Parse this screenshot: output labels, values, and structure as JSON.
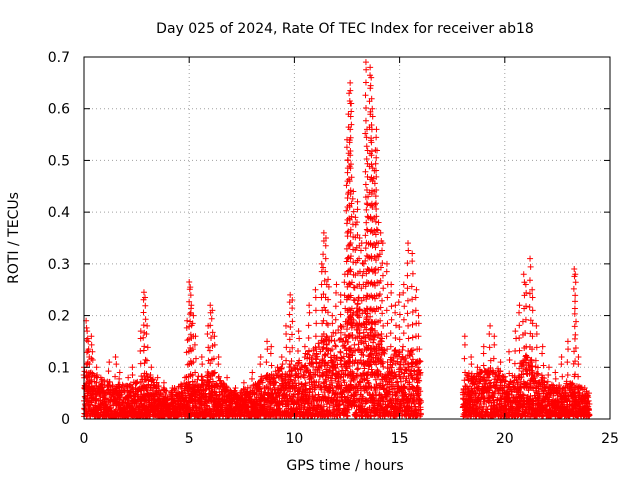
{
  "chart_data": {
    "type": "scatter",
    "title": "Day 025 of 2024, Rate Of TEC Index for receiver ab18",
    "xlabel": "GPS time / hours",
    "ylabel": "ROTI / TECUs",
    "xlim": [
      0,
      25
    ],
    "ylim": [
      0,
      0.7
    ],
    "xticks": [
      "0",
      "5",
      "10",
      "15",
      "20",
      "25"
    ],
    "yticks": [
      "0",
      "0.1",
      "0.2",
      "0.3",
      "0.4",
      "0.5",
      "0.6",
      "0.7"
    ],
    "grid": true,
    "marker": "plus",
    "color": "#ff0000",
    "series": [
      {
        "name": "ROTI",
        "points": [
          [
            0.0,
            0.1
          ],
          [
            0.1,
            0.19
          ],
          [
            0.15,
            0.17
          ],
          [
            0.2,
            0.15
          ],
          [
            0.25,
            0.12
          ],
          [
            0.35,
            0.16
          ],
          [
            0.4,
            0.13
          ],
          [
            0.6,
            0.1
          ],
          [
            0.8,
            0.08
          ],
          [
            1.2,
            0.11
          ],
          [
            1.5,
            0.12
          ],
          [
            1.7,
            0.09
          ],
          [
            2.1,
            0.08
          ],
          [
            2.3,
            0.1
          ],
          [
            2.5,
            0.07
          ],
          [
            2.7,
            0.17
          ],
          [
            2.85,
            0.245
          ],
          [
            2.9,
            0.235
          ],
          [
            3.0,
            0.18
          ],
          [
            3.2,
            0.1
          ],
          [
            3.5,
            0.08
          ],
          [
            3.8,
            0.07
          ],
          [
            4.2,
            0.06
          ],
          [
            4.5,
            0.05
          ],
          [
            4.8,
            0.08
          ],
          [
            4.9,
            0.19
          ],
          [
            5.0,
            0.265
          ],
          [
            5.05,
            0.255
          ],
          [
            5.1,
            0.22
          ],
          [
            5.2,
            0.2
          ],
          [
            5.3,
            0.16
          ],
          [
            5.6,
            0.12
          ],
          [
            5.9,
            0.18
          ],
          [
            6.0,
            0.22
          ],
          [
            6.1,
            0.21
          ],
          [
            6.2,
            0.16
          ],
          [
            6.4,
            0.12
          ],
          [
            6.8,
            0.08
          ],
          [
            7.2,
            0.06
          ],
          [
            7.6,
            0.07
          ],
          [
            8.0,
            0.09
          ],
          [
            8.4,
            0.12
          ],
          [
            8.7,
            0.15
          ],
          [
            8.9,
            0.14
          ],
          [
            9.2,
            0.1
          ],
          [
            9.4,
            0.12
          ],
          [
            9.6,
            0.18
          ],
          [
            9.8,
            0.24
          ],
          [
            9.9,
            0.23
          ],
          [
            10.2,
            0.17
          ],
          [
            10.5,
            0.14
          ],
          [
            10.7,
            0.22
          ],
          [
            11.0,
            0.25
          ],
          [
            11.3,
            0.3
          ],
          [
            11.4,
            0.36
          ],
          [
            11.5,
            0.35
          ],
          [
            11.6,
            0.27
          ],
          [
            11.8,
            0.2
          ],
          [
            12.0,
            0.26
          ],
          [
            12.2,
            0.24
          ],
          [
            12.4,
            0.28
          ],
          [
            12.5,
            0.54
          ],
          [
            12.55,
            0.5
          ],
          [
            12.6,
            0.63
          ],
          [
            12.65,
            0.65
          ],
          [
            12.7,
            0.61
          ],
          [
            12.8,
            0.44
          ],
          [
            12.9,
            0.39
          ],
          [
            13.0,
            0.42
          ],
          [
            13.1,
            0.35
          ],
          [
            13.2,
            0.34
          ],
          [
            13.3,
            0.3
          ],
          [
            13.4,
            0.69
          ],
          [
            13.45,
            0.56
          ],
          [
            13.5,
            0.43
          ],
          [
            13.6,
            0.68
          ],
          [
            13.65,
            0.66
          ],
          [
            13.7,
            0.6
          ],
          [
            13.8,
            0.48
          ],
          [
            13.85,
            0.52
          ],
          [
            13.9,
            0.56
          ],
          [
            14.0,
            0.38
          ],
          [
            14.1,
            0.36
          ],
          [
            14.2,
            0.34
          ],
          [
            14.4,
            0.3
          ],
          [
            14.6,
            0.26
          ],
          [
            14.8,
            0.22
          ],
          [
            15.0,
            0.24
          ],
          [
            15.2,
            0.26
          ],
          [
            15.4,
            0.34
          ],
          [
            15.6,
            0.32
          ],
          [
            15.8,
            0.25
          ],
          [
            15.9,
            0.2
          ],
          [
            18.1,
            0.16
          ],
          [
            18.4,
            0.12
          ],
          [
            18.7,
            0.1
          ],
          [
            19.0,
            0.14
          ],
          [
            19.3,
            0.18
          ],
          [
            19.5,
            0.16
          ],
          [
            19.8,
            0.11
          ],
          [
            20.2,
            0.13
          ],
          [
            20.5,
            0.17
          ],
          [
            20.7,
            0.22
          ],
          [
            20.9,
            0.28
          ],
          [
            21.0,
            0.26
          ],
          [
            21.2,
            0.31
          ],
          [
            21.3,
            0.25
          ],
          [
            21.5,
            0.18
          ],
          [
            21.8,
            0.14
          ],
          [
            22.1,
            0.1
          ],
          [
            22.4,
            0.09
          ],
          [
            22.7,
            0.12
          ],
          [
            23.0,
            0.15
          ],
          [
            23.3,
            0.29
          ],
          [
            23.35,
            0.28
          ],
          [
            23.5,
            0.12
          ],
          [
            23.8,
            0.06
          ],
          [
            24.0,
            0.05
          ]
        ],
        "envelope": {
          "hours": [
            0,
            1,
            2,
            3,
            4,
            5,
            6,
            7,
            8,
            9,
            10,
            11,
            12,
            12.5,
            13,
            13.5,
            14,
            14.5,
            15,
            15.5,
            16
          ],
          "max": [
            0.09,
            0.07,
            0.06,
            0.08,
            0.05,
            0.07,
            0.09,
            0.05,
            0.06,
            0.09,
            0.1,
            0.14,
            0.17,
            0.19,
            0.22,
            0.2,
            0.16,
            0.13,
            0.13,
            0.13,
            0.11
          ]
        },
        "envelope2": {
          "hours": [
            18,
            18.5,
            19,
            19.5,
            20,
            20.5,
            21,
            21.5,
            22,
            22.5,
            23,
            23.5,
            24
          ],
          "max": [
            0.08,
            0.09,
            0.09,
            0.1,
            0.08,
            0.09,
            0.12,
            0.1,
            0.07,
            0.06,
            0.07,
            0.06,
            0.05
          ]
        }
      }
    ]
  }
}
